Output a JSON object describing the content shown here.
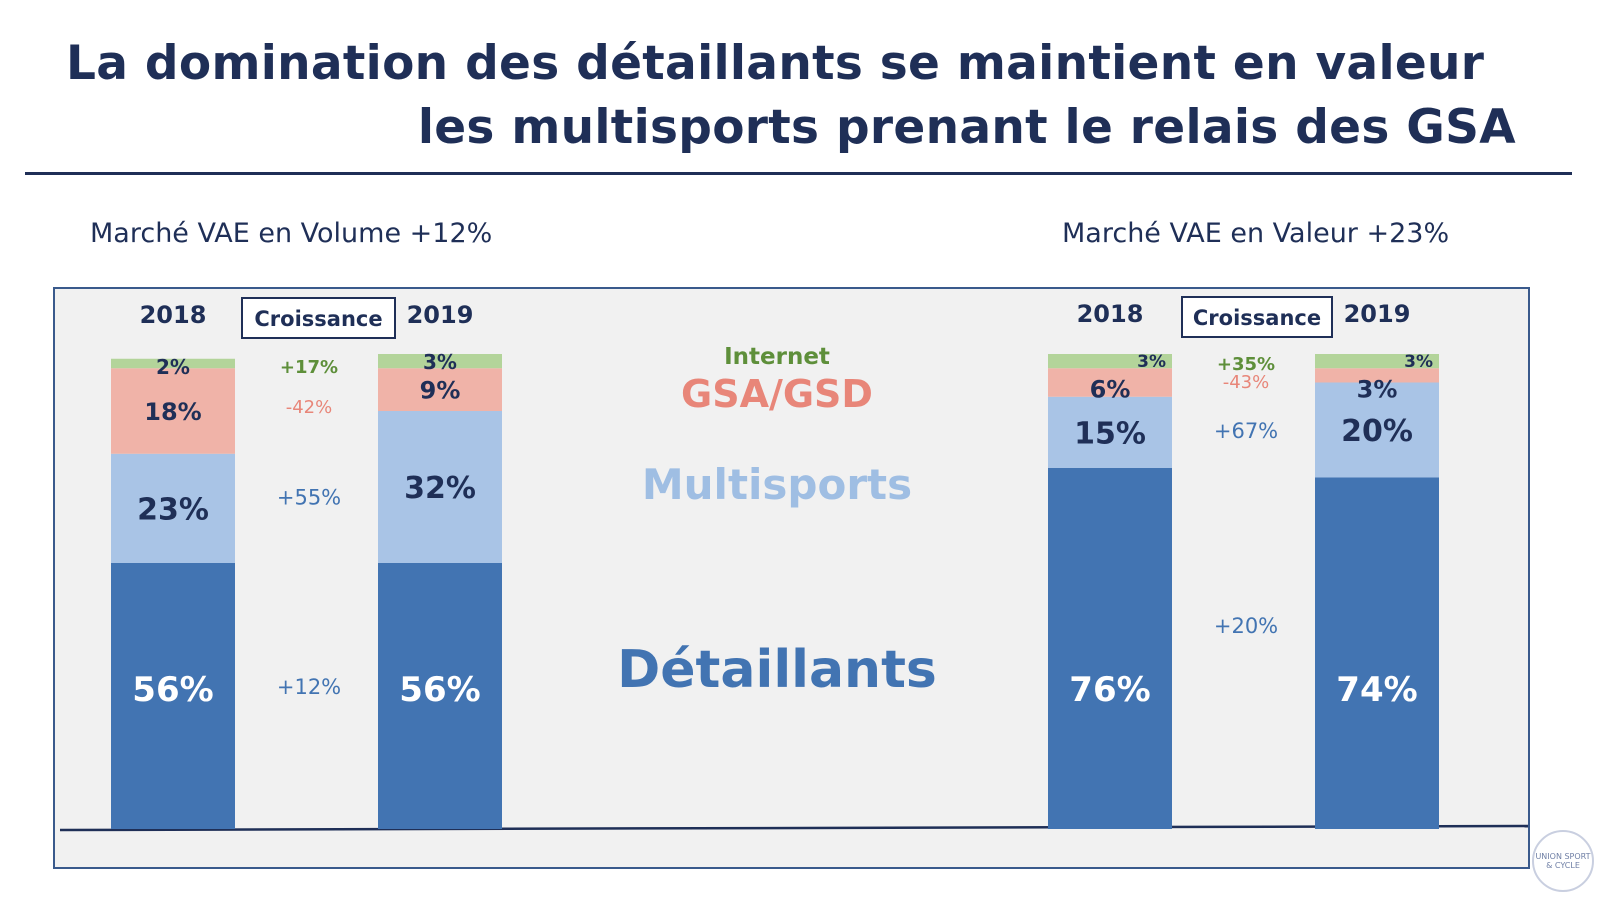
{
  "header": {
    "title_line1": "La domination des détaillants se maintient en valeur",
    "title_line2": "les multisports prenant le relais des GSA"
  },
  "logo": {
    "text": "UNION SPORT & CYCLE",
    "icon": "union-sport-cycle-logo-icon"
  },
  "colors": {
    "title": "#1f2f57",
    "detaillants": "#4274b2",
    "multisports": "#a9c4e6",
    "gsa": "#f0b3a8",
    "internet": "#b3d49a",
    "internet_text": "#5e8f3a",
    "gsa_text": "#e88679",
    "multisports_text": "#9fbee3",
    "detaillants_text": "#4274b2"
  },
  "chart_data": {
    "type": "bar",
    "stacked": true,
    "series_order": [
      "Détaillants",
      "Multisports",
      "GSA/GSD",
      "Internet"
    ],
    "legend": [
      "Internet",
      "GSA/GSD",
      "Multisports",
      "Détaillants"
    ],
    "growth_box_label": "Croissance",
    "charts": [
      {
        "id": "volume",
        "subtitle": "Marché VAE en Volume +12%",
        "categories": [
          "2018",
          "2019"
        ],
        "series": [
          {
            "name": "Détaillants",
            "values": [
              56,
              56
            ],
            "labels": [
              "56%",
              "56%"
            ],
            "growth": "+12%"
          },
          {
            "name": "Multisports",
            "values": [
              23,
              32
            ],
            "labels": [
              "23%",
              "32%"
            ],
            "growth": "+55%"
          },
          {
            "name": "GSA/GSD",
            "values": [
              18,
              9
            ],
            "labels": [
              "18%",
              "9%"
            ],
            "growth": "-42%"
          },
          {
            "name": "Internet",
            "values": [
              2,
              3
            ],
            "labels": [
              "2%",
              "3%"
            ],
            "growth": "+17%"
          }
        ]
      },
      {
        "id": "valeur",
        "subtitle": "Marché VAE en Valeur +23%",
        "categories": [
          "2018",
          "2019"
        ],
        "series": [
          {
            "name": "Détaillants",
            "values": [
              76,
              74
            ],
            "labels": [
              "76%",
              "74%"
            ],
            "growth": "+20%"
          },
          {
            "name": "Multisports",
            "values": [
              15,
              20
            ],
            "labels": [
              "15%",
              "20%"
            ],
            "growth": "+67%"
          },
          {
            "name": "GSA/GSD",
            "values": [
              6,
              3
            ],
            "labels": [
              "6%",
              "3%"
            ],
            "growth": "-43%"
          },
          {
            "name": "Internet",
            "values": [
              3,
              3
            ],
            "labels": [
              "3%",
              "3%"
            ],
            "growth": "+35%"
          }
        ]
      }
    ]
  }
}
